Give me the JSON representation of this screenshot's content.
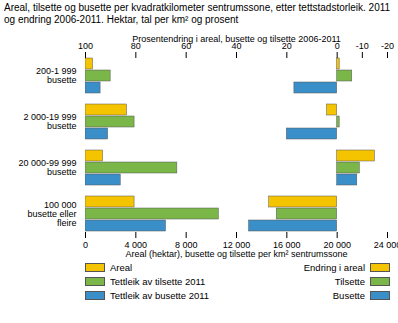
{
  "chart_data": [
    {
      "type": "bar",
      "orientation": "horizontal",
      "title": "Areal, tilsette og busette per kvadratkilometer sentrumssone, etter tettstadstorleik. 2011 og endring 2006-2011. Hektar, tal per km² og prosent",
      "xlabel": "Areal (hektar), busette og tilsette per km² sentrumssone",
      "categories": [
        "200-1 999 busette",
        "2 000-19 999 busette",
        "20 000-99 999 busette",
        "100 000 busette eller fleire"
      ],
      "series": [
        {
          "name": "Areal",
          "color": "#f5c400",
          "values": [
            600,
            3300,
            1400,
            3900
          ]
        },
        {
          "name": "Tettleik av tilsette 2011",
          "color": "#7ab648",
          "values": [
            2000,
            3900,
            7300,
            10600
          ]
        },
        {
          "name": "Tettleik av busette 2011",
          "color": "#3a8fc8",
          "values": [
            1200,
            1800,
            2800,
            6400
          ]
        }
      ],
      "xlim": [
        0,
        24000
      ],
      "xticks": [
        0,
        {
          "value": 4000,
          "label": "4 000"
        },
        {
          "value": 8000,
          "label": "8 000"
        },
        {
          "value": 12000,
          "label": "12 000"
        },
        {
          "value": 16000,
          "label": "16 000"
        },
        {
          "value": 20000,
          "label": "20 000"
        },
        {
          "value": 24000,
          "label": "24 000"
        }
      ]
    },
    {
      "type": "bar",
      "orientation": "horizontal",
      "xlabel": "Prosentendring i areal, busette og tilsette 2006-2011",
      "categories": [
        "200-1 999 busette",
        "2 000-19 999 busette",
        "20 000-99 999 busette",
        "100 000 busette eller fleire"
      ],
      "series": [
        {
          "name": "Endring i areal",
          "color": "#f5c400",
          "values": [
            -1,
            4,
            -15,
            27
          ]
        },
        {
          "name": "Tilsette",
          "color": "#7ab648",
          "values": [
            -6,
            -1,
            -9,
            24
          ]
        },
        {
          "name": "Busette",
          "color": "#3a8fc8",
          "values": [
            17,
            20,
            -8,
            35
          ]
        }
      ],
      "xlim": [
        100,
        -20
      ],
      "xticks": [
        100,
        80,
        60,
        40,
        20,
        0,
        -10,
        -20
      ]
    }
  ]
}
